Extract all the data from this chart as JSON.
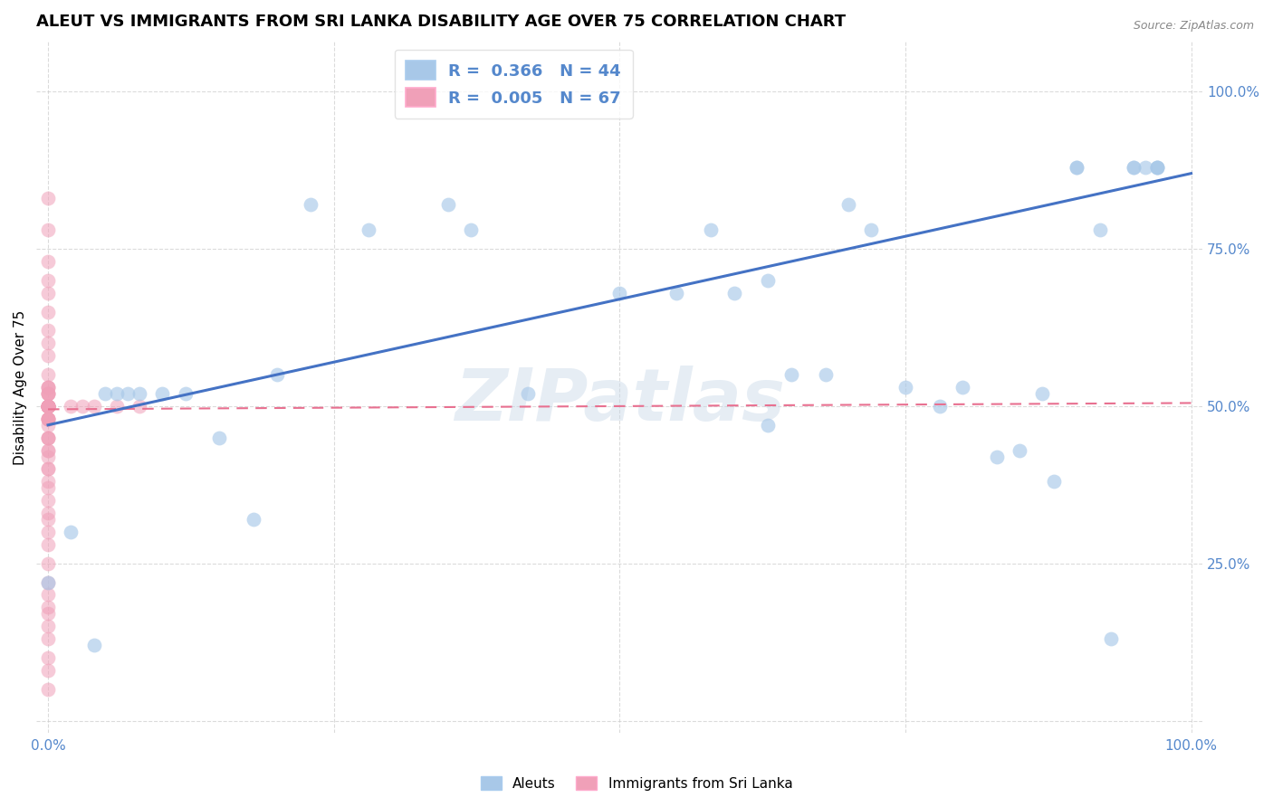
{
  "title": "ALEUT VS IMMIGRANTS FROM SRI LANKA DISABILITY AGE OVER 75 CORRELATION CHART",
  "source_text": "Source: ZipAtlas.com",
  "ylabel": "Disability Age Over 75",
  "x_ticks": [
    0.0,
    0.25,
    0.5,
    0.75,
    1.0
  ],
  "x_tick_labels": [
    "0.0%",
    "",
    "",
    "",
    "100.0%"
  ],
  "y_ticks": [
    0.0,
    0.25,
    0.5,
    0.75,
    1.0
  ],
  "y_tick_labels_right": [
    "",
    "25.0%",
    "50.0%",
    "75.0%",
    "100.0%"
  ],
  "xlim": [
    -0.01,
    1.01
  ],
  "ylim": [
    -0.02,
    1.08
  ],
  "blue_R": 0.366,
  "blue_N": 44,
  "pink_R": 0.005,
  "pink_N": 67,
  "blue_color": "#A8C8E8",
  "pink_color": "#F0A0B8",
  "blue_edge_color": "#A8C8E8",
  "pink_edge_color": "#F0A0B8",
  "blue_line_color": "#4472C4",
  "pink_line_color": "#E87090",
  "legend_label_blue": "Aleuts",
  "legend_label_pink": "Immigrants from Sri Lanka",
  "watermark": "ZIPatlas",
  "blue_x": [
    0.0,
    0.02,
    0.04,
    0.05,
    0.06,
    0.07,
    0.08,
    0.1,
    0.12,
    0.15,
    0.18,
    0.2,
    0.23,
    0.28,
    0.35,
    0.37,
    0.42,
    0.5,
    0.55,
    0.58,
    0.6,
    0.63,
    0.65,
    0.68,
    0.7,
    0.75,
    0.78,
    0.8,
    0.83,
    0.85,
    0.87,
    0.88,
    0.9,
    0.9,
    0.92,
    0.93,
    0.95,
    0.95,
    0.96,
    0.97,
    0.97,
    0.97,
    0.63,
    0.72
  ],
  "blue_y": [
    0.22,
    0.3,
    0.12,
    0.52,
    0.52,
    0.52,
    0.52,
    0.52,
    0.52,
    0.45,
    0.32,
    0.55,
    0.82,
    0.78,
    0.82,
    0.78,
    0.52,
    0.68,
    0.68,
    0.78,
    0.68,
    0.7,
    0.55,
    0.55,
    0.82,
    0.53,
    0.5,
    0.53,
    0.42,
    0.43,
    0.52,
    0.38,
    0.88,
    0.88,
    0.78,
    0.13,
    0.88,
    0.88,
    0.88,
    0.88,
    0.88,
    0.88,
    0.47,
    0.78
  ],
  "pink_x": [
    0.0,
    0.0,
    0.0,
    0.0,
    0.0,
    0.0,
    0.0,
    0.0,
    0.0,
    0.0,
    0.0,
    0.0,
    0.0,
    0.0,
    0.0,
    0.0,
    0.0,
    0.0,
    0.0,
    0.0,
    0.0,
    0.0,
    0.0,
    0.0,
    0.0,
    0.0,
    0.0,
    0.0,
    0.0,
    0.0,
    0.0,
    0.0,
    0.0,
    0.0,
    0.0,
    0.0,
    0.0,
    0.0,
    0.0,
    0.0,
    0.0,
    0.0,
    0.0,
    0.0,
    0.0,
    0.0,
    0.0,
    0.0,
    0.0,
    0.0,
    0.0,
    0.0,
    0.0,
    0.0,
    0.0,
    0.0,
    0.0,
    0.0,
    0.0,
    0.0,
    0.0,
    0.0,
    0.02,
    0.03,
    0.04,
    0.06,
    0.08
  ],
  "pink_y": [
    0.83,
    0.78,
    0.73,
    0.7,
    0.68,
    0.65,
    0.62,
    0.6,
    0.58,
    0.55,
    0.53,
    0.52,
    0.5,
    0.5,
    0.5,
    0.5,
    0.48,
    0.48,
    0.47,
    0.45,
    0.45,
    0.43,
    0.42,
    0.4,
    0.4,
    0.38,
    0.37,
    0.35,
    0.33,
    0.32,
    0.3,
    0.28,
    0.25,
    0.22,
    0.2,
    0.18,
    0.17,
    0.15,
    0.13,
    0.1,
    0.08,
    0.05,
    0.5,
    0.52,
    0.48,
    0.45,
    0.43,
    0.5,
    0.5,
    0.5,
    0.52,
    0.48,
    0.53,
    0.5,
    0.5,
    0.5,
    0.52,
    0.48,
    0.5,
    0.5,
    0.5,
    0.53,
    0.5,
    0.5,
    0.5,
    0.5,
    0.5
  ],
  "blue_trend_x": [
    0.0,
    1.0
  ],
  "blue_trend_y": [
    0.47,
    0.87
  ],
  "pink_trend_x": [
    0.0,
    1.0
  ],
  "pink_trend_y": [
    0.495,
    0.505
  ],
  "background_color": "#FFFFFF",
  "grid_color": "#CCCCCC",
  "title_fontsize": 13,
  "axis_fontsize": 11,
  "tick_fontsize": 11,
  "right_tick_color": "#5588CC"
}
